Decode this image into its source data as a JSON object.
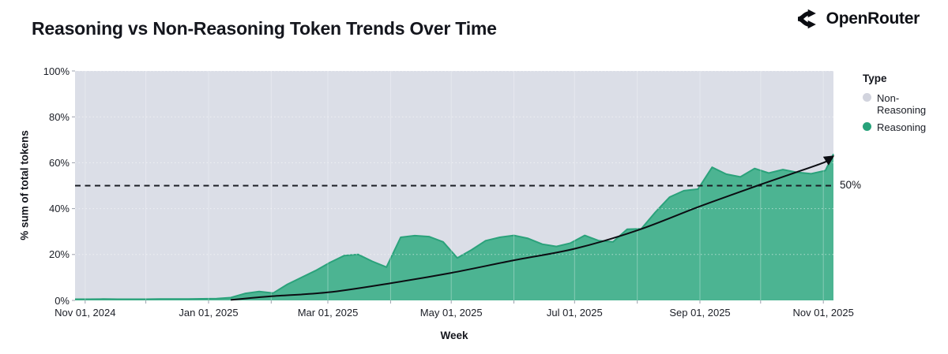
{
  "header": {
    "title": "Reasoning vs Non-Reasoning Token Trends Over Time",
    "brand": "OpenRouter"
  },
  "chart_data": {
    "type": "area",
    "stacked_percent": true,
    "title": "Reasoning vs Non-Reasoning Token Trends Over Time",
    "xlabel": "Week",
    "ylabel": "% sum of total tokens",
    "ylim": [
      0,
      100
    ],
    "x_range": [
      "2024-10-27",
      "2025-11-06"
    ],
    "plot_background_color": "#dbdee7",
    "grid": true,
    "y_ticks": [
      {
        "label": "0%",
        "value": 0
      },
      {
        "label": "20%",
        "value": 20
      },
      {
        "label": "40%",
        "value": 40
      },
      {
        "label": "60%",
        "value": 60
      },
      {
        "label": "80%",
        "value": 80
      },
      {
        "label": "100%",
        "value": 100
      }
    ],
    "x_ticks": [
      {
        "label": "Nov 01, 2024",
        "date": "2024-11-01"
      },
      {
        "label": "Jan 01, 2025",
        "date": "2025-01-01"
      },
      {
        "label": "Mar 01, 2025",
        "date": "2025-03-01"
      },
      {
        "label": "May 01, 2025",
        "date": "2025-05-01"
      },
      {
        "label": "Jul 01, 2025",
        "date": "2025-07-01"
      },
      {
        "label": "Sep 01, 2025",
        "date": "2025-09-01"
      },
      {
        "label": "Nov 01, 2025",
        "date": "2025-11-01"
      }
    ],
    "month_gridline_dates": [
      "2024-11-01",
      "2024-12-01",
      "2025-01-01",
      "2025-02-01",
      "2025-03-01",
      "2025-04-01",
      "2025-05-01",
      "2025-06-01",
      "2025-07-01",
      "2025-08-01",
      "2025-09-01",
      "2025-10-01",
      "2025-11-01"
    ],
    "legend": {
      "title": "Type",
      "position": "right",
      "items": [
        {
          "label": "Non-Reasoning",
          "color": "#d2d4de"
        },
        {
          "label": "Reasoning",
          "color": "#27a27a"
        }
      ]
    },
    "reference_line": {
      "value": 50,
      "label": "50%",
      "style": "dashed",
      "color": "#1a1d24"
    },
    "x": [
      "2024-10-27",
      "2024-11-03",
      "2024-11-10",
      "2024-11-17",
      "2024-11-24",
      "2024-12-01",
      "2024-12-08",
      "2024-12-15",
      "2024-12-22",
      "2024-12-29",
      "2025-01-05",
      "2025-01-12",
      "2025-01-19",
      "2025-01-26",
      "2025-02-02",
      "2025-02-09",
      "2025-02-16",
      "2025-02-23",
      "2025-03-02",
      "2025-03-09",
      "2025-03-16",
      "2025-03-23",
      "2025-03-30",
      "2025-04-06",
      "2025-04-13",
      "2025-04-20",
      "2025-04-27",
      "2025-05-04",
      "2025-05-11",
      "2025-05-18",
      "2025-05-25",
      "2025-06-01",
      "2025-06-08",
      "2025-06-15",
      "2025-06-22",
      "2025-06-29",
      "2025-07-06",
      "2025-07-13",
      "2025-07-20",
      "2025-07-27",
      "2025-08-03",
      "2025-08-10",
      "2025-08-17",
      "2025-08-24",
      "2025-08-31",
      "2025-09-07",
      "2025-09-14",
      "2025-09-21",
      "2025-09-28",
      "2025-10-05",
      "2025-10-12",
      "2025-10-19",
      "2025-10-26",
      "2025-11-02",
      "2025-11-06"
    ],
    "series": [
      {
        "name": "Reasoning",
        "fill_color": "#4cb492",
        "stroke_color": "#2ba27b",
        "values": [
          0.5,
          0.5,
          0.6,
          0.5,
          0.5,
          0.5,
          0.6,
          0.6,
          0.6,
          0.7,
          0.8,
          1.2,
          3.0,
          3.9,
          3.2,
          7.0,
          10.0,
          13.0,
          16.5,
          19.5,
          20.0,
          17.0,
          14.5,
          27.5,
          28.2,
          27.8,
          25.5,
          18.5,
          22.0,
          26.0,
          27.5,
          28.3,
          27.0,
          24.5,
          23.5,
          25.0,
          28.3,
          26.0,
          25.5,
          31.0,
          31.2,
          38.5,
          45.0,
          47.8,
          48.5,
          58.0,
          55.0,
          53.8,
          57.5,
          55.5,
          57.0,
          55.8,
          55.2,
          56.6,
          63.8
        ]
      },
      {
        "name": "Non-Reasoning",
        "fill_color": "#dbdee7",
        "values": [
          99.5,
          99.5,
          99.4,
          99.5,
          99.5,
          99.5,
          99.4,
          99.4,
          99.4,
          99.3,
          99.2,
          98.8,
          97.0,
          96.1,
          96.8,
          93.0,
          90.0,
          87.0,
          83.5,
          80.5,
          80.0,
          83.0,
          85.5,
          72.5,
          71.8,
          72.2,
          74.5,
          81.5,
          78.0,
          74.0,
          72.5,
          71.7,
          73.0,
          75.5,
          76.5,
          75.0,
          71.7,
          74.0,
          74.5,
          69.0,
          68.8,
          61.5,
          55.0,
          52.2,
          51.5,
          42.0,
          45.0,
          46.2,
          42.5,
          44.5,
          43.0,
          44.2,
          44.8,
          43.4,
          36.2
        ]
      }
    ],
    "trend_line": {
      "color": "#0b0d12",
      "end_arrow": true,
      "points": [
        {
          "date": "2025-01-12",
          "value": 0.2
        },
        {
          "date": "2025-02-01",
          "value": 1.8
        },
        {
          "date": "2025-03-01",
          "value": 3.5
        },
        {
          "date": "2025-04-01",
          "value": 7.5
        },
        {
          "date": "2025-05-01",
          "value": 12.0
        },
        {
          "date": "2025-06-01",
          "value": 17.5
        },
        {
          "date": "2025-07-01",
          "value": 22.5
        },
        {
          "date": "2025-08-01",
          "value": 30.5
        },
        {
          "date": "2025-09-01",
          "value": 41.0
        },
        {
          "date": "2025-10-01",
          "value": 50.5
        },
        {
          "date": "2025-11-01",
          "value": 60.0
        },
        {
          "date": "2025-11-05",
          "value": 62.3
        }
      ]
    }
  }
}
